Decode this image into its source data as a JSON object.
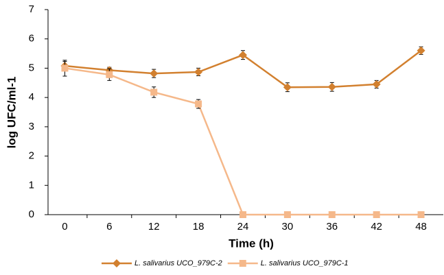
{
  "chart_data": {
    "type": "line",
    "x_label": "Time (h)",
    "y_label": "log UFC/ml-1",
    "categories": [
      "0",
      "6",
      "12",
      "18",
      "24",
      "30",
      "36",
      "42",
      "48"
    ],
    "ylim": [
      0,
      7
    ],
    "yticks": [
      0,
      1,
      2,
      3,
      4,
      5,
      6,
      7
    ],
    "series": [
      {
        "name": "L. salivarius UCO_979C-2",
        "color": "#d2802f",
        "marker": "diamond",
        "values": [
          5.08,
          4.93,
          4.82,
          4.87,
          5.45,
          4.35,
          4.36,
          4.45,
          5.6
        ],
        "errors": [
          0.15,
          0.1,
          0.14,
          0.13,
          0.15,
          0.15,
          0.15,
          0.13,
          0.13
        ]
      },
      {
        "name": "L. salivarius UCO_979C-1",
        "color": "#f5b88a",
        "marker": "square",
        "values": [
          5.0,
          4.78,
          4.18,
          3.78,
          0,
          0,
          0,
          0,
          0
        ],
        "errors": [
          0.27,
          0.2,
          0.18,
          0.15,
          0,
          0,
          0,
          0,
          0
        ]
      }
    ],
    "legend": "bottom"
  }
}
